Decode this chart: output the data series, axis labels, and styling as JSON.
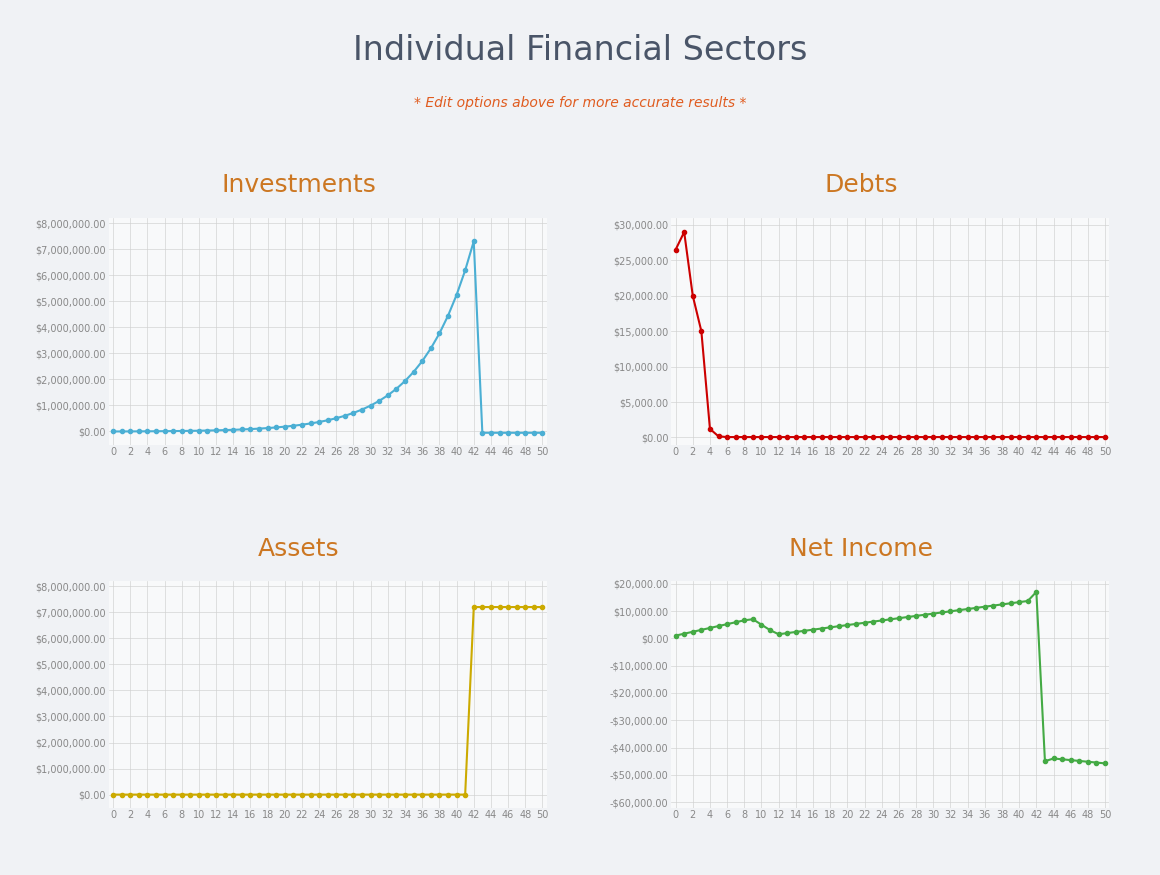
{
  "title": "Individual Financial Sectors",
  "subtitle": "* Edit options above for more accurate results *",
  "title_color": "#4a5568",
  "subtitle_color": "#e05c20",
  "background_color": "#f0f2f5",
  "panel_background": "#ffffff",
  "grid_color": "#d0d0d0",
  "x_ticks": [
    0,
    2,
    4,
    6,
    8,
    10,
    12,
    14,
    16,
    18,
    20,
    22,
    24,
    26,
    28,
    30,
    32,
    34,
    36,
    38,
    40,
    42,
    44,
    46,
    48,
    50
  ],
  "charts": [
    {
      "title": "Investments",
      "title_color": "#cc7722",
      "line_color": "#4bafd4",
      "marker_color": "#4bafd4",
      "ylim": [
        -500000,
        8200000
      ],
      "yticks": [
        0,
        1000000,
        2000000,
        3000000,
        4000000,
        5000000,
        6000000,
        7000000,
        8000000
      ]
    },
    {
      "title": "Debts",
      "title_color": "#cc7722",
      "line_color": "#cc0000",
      "marker_color": "#cc0000",
      "ylim": [
        -1000,
        31000
      ],
      "yticks": [
        0,
        5000,
        10000,
        15000,
        20000,
        25000,
        30000
      ]
    },
    {
      "title": "Assets",
      "title_color": "#cc7722",
      "line_color": "#ccaa00",
      "marker_color": "#ccaa00",
      "ylim": [
        -500000,
        8200000
      ],
      "yticks": [
        0,
        1000000,
        2000000,
        3000000,
        4000000,
        5000000,
        6000000,
        7000000,
        8000000
      ]
    },
    {
      "title": "Net Income",
      "title_color": "#cc7722",
      "line_color": "#44aa44",
      "marker_color": "#44aa44",
      "ylim": [
        -62000,
        21000
      ],
      "yticks": [
        -60000,
        -50000,
        -40000,
        -30000,
        -20000,
        -10000,
        0,
        10000,
        20000
      ]
    }
  ]
}
